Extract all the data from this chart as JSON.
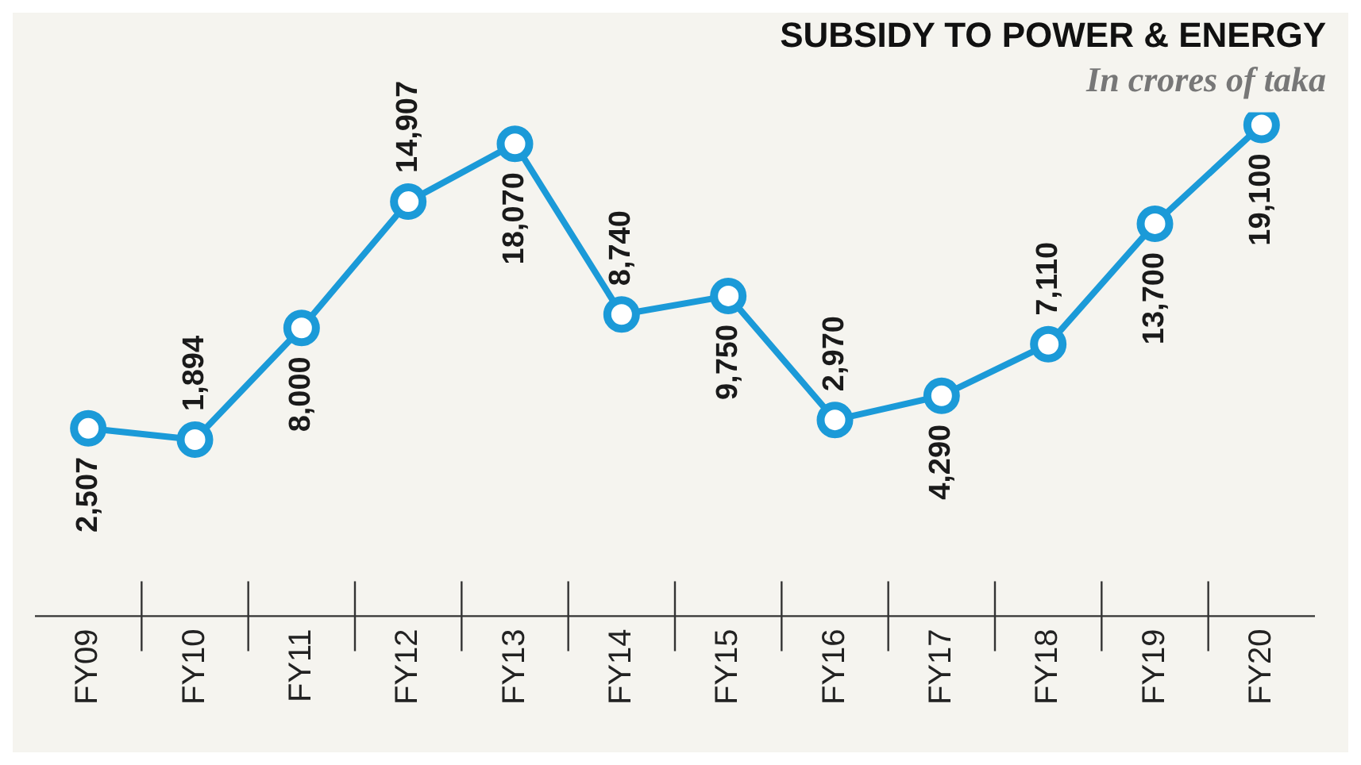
{
  "chart_data": {
    "type": "line",
    "title": "SUBSIDY TO POWER & ENERGY",
    "subtitle": "In crores of taka",
    "categories": [
      "FY09",
      "FY10",
      "FY11",
      "FY12",
      "FY13",
      "FY14",
      "FY15",
      "FY16",
      "FY17",
      "FY18",
      "FY19",
      "FY20"
    ],
    "series": [
      {
        "color": "#1b9ad8",
        "values": [
          2507,
          1894,
          8000,
          14907,
          18070,
          8740,
          9750,
          2970,
          4290,
          7110,
          13700,
          19100
        ],
        "value_labels": [
          "2,507",
          "1,894",
          "8,000",
          "14,907",
          "18,070",
          "8,740",
          "9,750",
          "2,970",
          "4,290",
          "7,110",
          "13,700",
          "19,100"
        ]
      }
    ],
    "marker": "circle",
    "line_style": "solid",
    "grid": false,
    "legend": false,
    "tick_labels": "x"
  }
}
